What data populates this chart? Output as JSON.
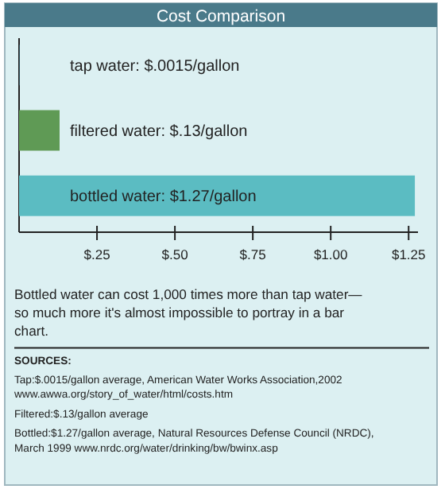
{
  "chart_data": {
    "type": "bar",
    "orientation": "horizontal",
    "title": "Cost Comparison",
    "categories": [
      "tap water: $.0015/gallon",
      "filtered water: $.13/gallon",
      "bottled water: $1.27/gallon"
    ],
    "values": [
      0.0015,
      0.13,
      1.27
    ],
    "colors": [
      "#3d6f80",
      "#5f9a55",
      "#5bbcc2"
    ],
    "xlim": [
      0,
      1.28
    ],
    "xticks": [
      {
        "value": 0.25,
        "label": "$.25"
      },
      {
        "value": 0.5,
        "label": "$.50"
      },
      {
        "value": 0.75,
        "label": "$.75"
      },
      {
        "value": 1,
        "label": "$1.00"
      },
      {
        "value": 1.25,
        "label": "$1.25"
      }
    ],
    "grid": false,
    "annotations": [
      "Bottled water can cost 1,000 times more than tap water—so much more it's almost impossible to portray in a bar chart.",
      "SOURCES:",
      "Tap:$.0015/gallon average, American Water Works Association,2002 www.awwa.org/story_of_water/html/costs.htm",
      "Filtered:$.13/gallon average",
      "Bottled:$1.27/gallon average, Natural Resources Defense Council (NRDC), March 1999 www.nrdc.org/water/drinking/bw/bwinx.asp"
    ]
  }
}
